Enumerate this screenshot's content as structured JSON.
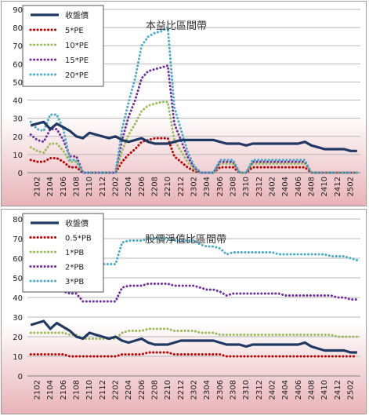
{
  "colors": {
    "background_top": "#ffffff",
    "background_bottom": "#e8b3b8",
    "grid": "#b9b9b9",
    "legend_bg": "#ffffff",
    "legend_border": "#555555"
  },
  "chart_data": [
    {
      "type": "line",
      "title": "本益比區間帶",
      "ylim": [
        0,
        90
      ],
      "yticks": [
        0,
        10,
        20,
        30,
        40,
        50,
        60,
        70,
        80,
        90
      ],
      "x": [
        "2101",
        "2102",
        "2103",
        "2104",
        "2105",
        "2106",
        "2107",
        "2108",
        "2109",
        "2110",
        "2111",
        "2112",
        "2201",
        "2202",
        "2203",
        "2204",
        "2205",
        "2206",
        "2207",
        "2208",
        "2209",
        "2210",
        "2211",
        "2212",
        "2301",
        "2302",
        "2303",
        "2304",
        "2305",
        "2306",
        "2307",
        "2308",
        "2309",
        "2310",
        "2311",
        "2312",
        "2401",
        "2402",
        "2403",
        "2404",
        "2405",
        "2406",
        "2407",
        "2408",
        "2409",
        "2410",
        "2411",
        "2412",
        "2501",
        "2502",
        "2503"
      ],
      "xtick_labels": [
        "2102",
        "2104",
        "2106",
        "2108",
        "2110",
        "2112",
        "2202",
        "2204",
        "2206",
        "2208",
        "2210",
        "2212",
        "2302",
        "2304",
        "2306",
        "2308",
        "2310",
        "2312",
        "2402",
        "2404",
        "2406",
        "2408",
        "2410",
        "2412",
        "2502"
      ],
      "legend_position": "top-left",
      "series": [
        {
          "name": "收盤價",
          "color": "#1f3864",
          "style": "solid",
          "values": [
            26,
            27,
            28,
            24,
            27,
            25,
            23,
            20,
            19,
            22,
            21,
            20,
            19,
            20,
            18,
            17,
            18,
            19,
            17,
            16,
            16,
            16,
            17,
            18,
            18,
            18,
            18,
            18,
            18,
            17,
            16,
            16,
            16,
            15,
            16,
            16,
            16,
            16,
            16,
            16,
            16,
            16,
            17,
            15,
            14,
            13,
            13,
            13,
            13,
            12,
            12
          ]
        },
        {
          "name": "5*PE",
          "color": "#c00000",
          "style": "dotted",
          "values": [
            7,
            6,
            6,
            8,
            8,
            6,
            3,
            3,
            0,
            0,
            0,
            0,
            0,
            0,
            6,
            10,
            13,
            17,
            18,
            19,
            19,
            19,
            9,
            6,
            3,
            1,
            0,
            0,
            0,
            3,
            3,
            3,
            0,
            0,
            3,
            3,
            3,
            3,
            3,
            3,
            3,
            3,
            3,
            0,
            0,
            0,
            0,
            0,
            0,
            0,
            0
          ]
        },
        {
          "name": "10*PE",
          "color": "#9bbb59",
          "style": "dotted",
          "values": [
            14,
            12,
            11,
            16,
            16,
            12,
            6,
            6,
            0,
            0,
            0,
            0,
            0,
            0,
            12,
            21,
            27,
            34,
            37,
            38,
            39,
            39,
            18,
            12,
            6,
            2,
            0,
            0,
            0,
            5,
            5,
            5,
            0,
            0,
            5,
            5,
            5,
            5,
            5,
            5,
            5,
            5,
            5,
            0,
            0,
            0,
            0,
            0,
            0,
            0,
            0
          ]
        },
        {
          "name": "15*PE",
          "color": "#7030a0",
          "style": "dotted",
          "values": [
            21,
            18,
            17,
            24,
            24,
            18,
            9,
            9,
            0,
            0,
            0,
            0,
            0,
            0,
            18,
            31,
            40,
            52,
            56,
            57,
            58,
            59,
            27,
            18,
            9,
            3,
            0,
            0,
            0,
            6,
            6,
            6,
            0,
            0,
            6,
            6,
            6,
            6,
            6,
            6,
            6,
            6,
            6,
            0,
            0,
            0,
            0,
            0,
            0,
            0,
            0
          ]
        },
        {
          "name": "20*PE",
          "color": "#4bacc6",
          "style": "dotted",
          "values": [
            28,
            24,
            23,
            32,
            32,
            24,
            7,
            7,
            0,
            0,
            0,
            0,
            0,
            0,
            24,
            39,
            52,
            70,
            75,
            77,
            78,
            80,
            36,
            24,
            12,
            4,
            0,
            0,
            0,
            7,
            7,
            7,
            0,
            0,
            7,
            7,
            7,
            7,
            7,
            7,
            7,
            7,
            7,
            0,
            0,
            0,
            0,
            0,
            0,
            0,
            0
          ]
        }
      ]
    },
    {
      "type": "line",
      "title": "股價淨值比區間帶",
      "ylim": [
        0,
        80
      ],
      "yticks": [
        0,
        10,
        20,
        30,
        40,
        50,
        60,
        70,
        80
      ],
      "x": [
        "2101",
        "2102",
        "2103",
        "2104",
        "2105",
        "2106",
        "2107",
        "2108",
        "2109",
        "2110",
        "2111",
        "2112",
        "2201",
        "2202",
        "2203",
        "2204",
        "2205",
        "2206",
        "2207",
        "2208",
        "2209",
        "2210",
        "2211",
        "2212",
        "2301",
        "2302",
        "2303",
        "2304",
        "2305",
        "2306",
        "2307",
        "2308",
        "2309",
        "2310",
        "2311",
        "2312",
        "2401",
        "2402",
        "2403",
        "2404",
        "2405",
        "2406",
        "2407",
        "2408",
        "2409",
        "2410",
        "2411",
        "2412",
        "2501",
        "2502",
        "2503"
      ],
      "xtick_labels": [
        "2102",
        "2104",
        "2106",
        "2108",
        "2110",
        "2112",
        "2202",
        "2204",
        "2206",
        "2208",
        "2210",
        "2212",
        "2302",
        "2304",
        "2306",
        "2308",
        "2310",
        "2312",
        "2402",
        "2404",
        "2406",
        "2408",
        "2410",
        "2412",
        "2502"
      ],
      "legend_position": "top-left",
      "series": [
        {
          "name": "收盤價",
          "color": "#1f3864",
          "style": "solid",
          "values": [
            26,
            27,
            28,
            24,
            27,
            25,
            23,
            20,
            19,
            22,
            21,
            20,
            19,
            20,
            18,
            17,
            18,
            19,
            17,
            16,
            16,
            16,
            17,
            18,
            18,
            18,
            18,
            18,
            18,
            17,
            16,
            16,
            16,
            15,
            16,
            16,
            16,
            16,
            16,
            16,
            16,
            16,
            17,
            15,
            14,
            13,
            13,
            13,
            13,
            12,
            12
          ]
        },
        {
          "name": "0.5*PB",
          "color": "#c00000",
          "style": "dotted",
          "values": [
            11,
            11,
            11,
            11,
            11,
            11,
            10,
            10,
            10,
            10,
            10,
            10,
            10,
            10,
            11,
            11,
            11,
            11,
            12,
            12,
            12,
            12,
            11,
            11,
            11,
            11,
            11,
            11,
            11,
            11,
            10,
            10,
            10,
            10,
            10,
            10,
            10,
            10,
            10,
            10,
            10,
            10,
            10,
            10,
            10,
            10,
            10,
            10,
            10,
            10,
            10
          ]
        },
        {
          "name": "1*PB",
          "color": "#9bbb59",
          "style": "dotted",
          "values": [
            22,
            22,
            22,
            22,
            22,
            22,
            21,
            21,
            19,
            19,
            19,
            19,
            19,
            19,
            22,
            23,
            23,
            23,
            24,
            24,
            24,
            24,
            23,
            23,
            23,
            23,
            22,
            22,
            22,
            21,
            21,
            21,
            21,
            21,
            21,
            21,
            21,
            21,
            21,
            21,
            21,
            21,
            21,
            21,
            21,
            21,
            21,
            20,
            20,
            20,
            20
          ]
        },
        {
          "name": "2*PB",
          "color": "#7030a0",
          "style": "dotted",
          "values": [
            44,
            44,
            44,
            44,
            44,
            43,
            42,
            42,
            38,
            38,
            38,
            38,
            38,
            38,
            45,
            46,
            46,
            46,
            47,
            47,
            47,
            47,
            46,
            46,
            46,
            46,
            45,
            44,
            44,
            43,
            41,
            42,
            42,
            42,
            42,
            42,
            42,
            42,
            42,
            41,
            41,
            41,
            41,
            41,
            41,
            41,
            41,
            40,
            40,
            39,
            39
          ]
        },
        {
          "name": "3*PB",
          "color": "#4bacc6",
          "style": "dotted",
          "values": [
            66,
            66,
            66,
            66,
            65,
            65,
            64,
            63,
            57,
            57,
            57,
            57,
            57,
            57,
            68,
            69,
            69,
            69,
            70,
            70,
            70,
            70,
            69,
            69,
            69,
            69,
            67,
            66,
            66,
            65,
            62,
            63,
            63,
            63,
            63,
            63,
            63,
            63,
            62,
            62,
            62,
            62,
            62,
            62,
            62,
            62,
            61,
            61,
            61,
            60,
            59
          ]
        }
      ]
    }
  ]
}
